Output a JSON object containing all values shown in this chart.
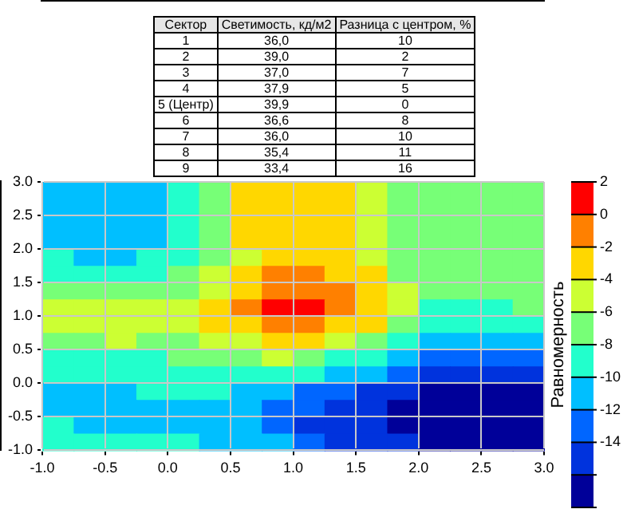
{
  "chart_data": [
    {
      "type": "other",
      "annotations": [
        "Сектор",
        "Светимость, кд/м2",
        "Разница с центром, %",
        "1",
        "36,0",
        "10",
        "2",
        "39,0",
        "2",
        "3",
        "37,0",
        "7",
        "4",
        "37,9",
        "5",
        "5 (Центр)",
        "39,9",
        "0",
        "6",
        "36,6",
        "8",
        "7",
        "36,0",
        "10",
        "8",
        "35,4",
        "11",
        "9",
        "33,4",
        "16"
      ]
    },
    {
      "type": "heatmap",
      "clabel": "Равномерность",
      "xlim": [
        -1,
        3
      ],
      "ylim": [
        -1,
        3
      ],
      "xticks": [
        {
          "value": -1,
          "label": "-1.0"
        },
        -0.5,
        {
          "value": 0,
          "label": "0.0"
        },
        0.5,
        {
          "value": 1,
          "label": "1.0"
        },
        1.5,
        {
          "value": 2,
          "label": "2.0"
        },
        2.5,
        {
          "value": 3,
          "label": "3.0"
        }
      ],
      "yticks": [
        {
          "value": -1,
          "label": "-1.0"
        },
        -0.5,
        {
          "value": 0,
          "label": "0.0"
        },
        0.5,
        {
          "value": 1,
          "label": "1.0"
        },
        1.5,
        {
          "value": 2,
          "label": "2.0"
        },
        2.5,
        {
          "value": 3,
          "label": "3.0"
        }
      ],
      "grid": true,
      "clim": [
        -18,
        2
      ],
      "cticks": [
        {
          "value": -18,
          "label": null
        },
        {
          "value": -16,
          "label": null
        },
        -14,
        -12,
        -10,
        -8,
        -6,
        -4,
        -2,
        0,
        2
      ],
      "colors": [
        "#000099",
        "#0033dd",
        "#0066ff",
        "#00bfff",
        "#22ffcc",
        "#77ff77",
        "#ccff33",
        "#ffd700",
        "#ff8000",
        "#ff0000"
      ],
      "cells": [
        [
          -11,
          -11,
          -11,
          -11,
          -9,
          -7,
          -3,
          -3,
          -3,
          -3,
          -5,
          -7,
          -7,
          -7,
          -7,
          -7
        ],
        [
          -11,
          -11,
          -11,
          -11,
          -9,
          -7,
          -3,
          -3,
          -3,
          -3,
          -5,
          -7,
          -7,
          -7,
          -7,
          -7
        ],
        [
          -11,
          -11,
          -11,
          -11,
          -9,
          -7,
          -3,
          -3,
          -3,
          -3,
          -5,
          -7,
          -7,
          -7,
          -7,
          -7
        ],
        [
          -11,
          -11,
          -11,
          -11,
          -9,
          -7,
          -3,
          -3,
          -3,
          -3,
          -5,
          -7,
          -7,
          -7,
          -7,
          -7
        ],
        [
          -9,
          -11,
          -11,
          -9,
          -9,
          -7,
          -5,
          -3,
          -3,
          -3,
          -5,
          -7,
          -7,
          -7,
          -7,
          -7
        ],
        [
          -9,
          -9,
          -9,
          -9,
          -7,
          -5,
          -3,
          -1,
          -1,
          -3,
          -3,
          -7,
          -7,
          -7,
          -7,
          -7
        ],
        [
          -7,
          -7,
          -7,
          -7,
          -7,
          -5,
          -3,
          -1,
          -1,
          -1,
          -3,
          -5,
          -7,
          -7,
          -7,
          -7
        ],
        [
          -5,
          -5,
          -5,
          -5,
          -5,
          -3,
          -1,
          1,
          1,
          -1,
          -3,
          -5,
          -9,
          -9,
          -9,
          -7
        ],
        [
          -5,
          -5,
          -5,
          -5,
          -5,
          -3,
          -3,
          -1,
          -1,
          -3,
          -3,
          -7,
          -9,
          -9,
          -9,
          -9
        ],
        [
          -7,
          -7,
          -5,
          -7,
          -7,
          -5,
          -5,
          -3,
          -3,
          -5,
          -7,
          -9,
          -11,
          -11,
          -11,
          -11
        ],
        [
          -9,
          -9,
          -9,
          -9,
          -7,
          -7,
          -7,
          -5,
          -7,
          -9,
          -9,
          -11,
          -13,
          -13,
          -13,
          -13
        ],
        [
          -9,
          -9,
          -9,
          -9,
          -9,
          -9,
          -9,
          -9,
          -9,
          -11,
          -11,
          -13,
          -15,
          -15,
          -15,
          -15
        ],
        [
          -11,
          -11,
          -11,
          -9,
          -9,
          -9,
          -11,
          -11,
          -13,
          -13,
          -15,
          -15,
          -17,
          -17,
          -17,
          -17
        ],
        [
          -11,
          -11,
          -11,
          -11,
          -11,
          -11,
          -11,
          -13,
          -13,
          -15,
          -15,
          -17,
          -17,
          -17,
          -17,
          -17
        ],
        [
          -9,
          -11,
          -11,
          -11,
          -11,
          -11,
          -11,
          -13,
          -15,
          -15,
          -15,
          -17,
          -17,
          -17,
          -17,
          -17
        ],
        [
          -9,
          -9,
          -9,
          -9,
          -9,
          -11,
          -11,
          -11,
          -13,
          -15,
          -15,
          -15,
          -17,
          -17,
          -17,
          -17
        ]
      ]
    }
  ]
}
